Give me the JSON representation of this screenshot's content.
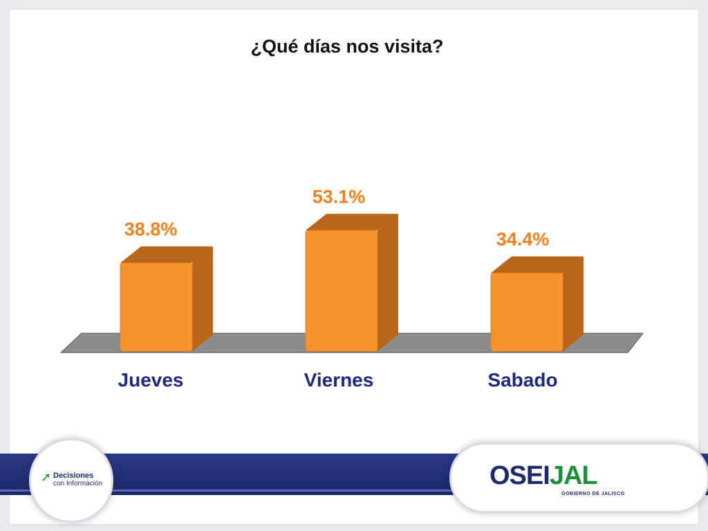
{
  "slide": {
    "title": "¿Qué días nos visita?"
  },
  "chart_data": {
    "type": "bar",
    "title": "¿Qué días nos visita?",
    "categories": [
      "Jueves",
      "Viernes",
      "Sabado"
    ],
    "values": [
      38.8,
      53.1,
      34.4
    ],
    "value_labels": [
      "38.8%",
      "53.1%",
      "34.4%"
    ],
    "unit": "%",
    "ylim": [
      0,
      60
    ],
    "grid": false,
    "legend": "none",
    "colors": {
      "bar": "#f7932c",
      "bar_side": "#b8661a",
      "bar_top": "#f3a040",
      "value_label": "#f07f1e",
      "category_label": "#1d2a7a",
      "floor": "#8c8c8c"
    }
  },
  "footer": {
    "left_logo": {
      "line1": "Decisiones",
      "line2": "con Información",
      "icon": "arrow-logo-icon"
    },
    "right_logo": {
      "part1": "OSEI",
      "part2": "JAL",
      "subtitle": "GOBIERNO DE JALISCO"
    }
  }
}
